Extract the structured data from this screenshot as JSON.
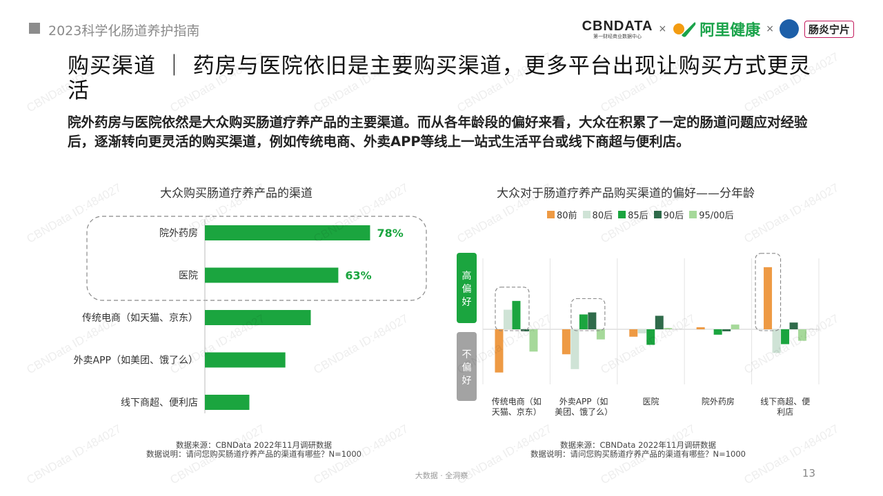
{
  "header": {
    "title": "2023科学化肠道养护指南"
  },
  "logos": {
    "cbn_main": "CBNDATA",
    "cbn_sub": "第一财经商业数据中心",
    "times": "×",
    "ali_name": "阿里健康",
    "brand": "肠炎宁片"
  },
  "main_title": "购买渠道 ｜ 药房与医院依旧是主要购买渠道，更多平台出现让购买方式更灵活",
  "subtitle": "院外药房与医院依然是大众购买肠道疗养产品的主要渠道。而从各年龄段的偏好来看，大众在积累了一定的肠道问题应对经验后，逐渐转向更灵活的购买渠道，例如传统电商、外卖APP等线上一站式生活平台或线下商超与便利店。",
  "left_chart": {
    "title": "大众购买肠道疗养产品的渠道",
    "source": "数据来源：CBNData 2022年11月调研数据",
    "note": "数据说明：请问您购买肠道疗养产品的渠道有哪些？N=1000"
  },
  "right_chart": {
    "title": "大众对于肠道疗养产品购买渠道的偏好——分年龄",
    "high_label": "高偏好",
    "low_label": "不偏好",
    "source": "数据来源：CBNData 2022年11月调研数据",
    "note": "数据说明：请问您购买肠道疗养产品的渠道有哪些？N=1000"
  },
  "footer": {
    "center": "大数据 · 全洞察",
    "page": "13"
  },
  "watermark": "CBNData ID:484027",
  "colors": {
    "green": "#1ba53f",
    "orange": "#ee9a44",
    "light_green_gray": "#cfe3d6",
    "dark_green": "#2f6b4a",
    "pale_green": "#a6d99a",
    "gray_box": "#a3a3a3"
  },
  "chart_data": [
    {
      "type": "bar",
      "orientation": "horizontal",
      "title": "大众购买肠道疗养产品的渠道",
      "categories": [
        "院外药房",
        "医院",
        "传统电商（如天猫、京东）",
        "外卖APP（如美团、饿了么）",
        "线下商超、便利店"
      ],
      "values": [
        78,
        63,
        50,
        38,
        21
      ],
      "value_labels": [
        "78%",
        "63%",
        "",
        "",
        ""
      ],
      "unit": "%",
      "highlighted": [
        "院外药房",
        "医院"
      ],
      "xlim": [
        0,
        100
      ],
      "color": "#1ba53f"
    },
    {
      "type": "bar",
      "title": "大众对于肠道疗养产品购买渠道的偏好——分年龄",
      "categories": [
        "传统电商（如天猫、京东）",
        "外卖APP（如美团、饿了么）",
        "医院",
        "院外药房",
        "线下商超、便利店"
      ],
      "series": [
        {
          "name": "80前",
          "color": "#ee9a44",
          "values": [
            -64,
            -37,
            -11,
            3,
            92
          ]
        },
        {
          "name": "80后",
          "color": "#cfe3d6",
          "values": [
            29,
            -59,
            -6,
            0,
            -35
          ]
        },
        {
          "name": "85后",
          "color": "#1ba53f",
          "values": [
            42,
            22,
            -23,
            -8,
            -22
          ]
        },
        {
          "name": "90后",
          "color": "#2f6b4a",
          "values": [
            -3,
            25,
            20,
            -3,
            10
          ]
        },
        {
          "name": "95/00后",
          "color": "#a6d99a",
          "values": [
            -33,
            -15,
            2,
            7,
            -17
          ]
        }
      ],
      "ylim": [
        -100,
        100
      ],
      "y_semantics": {
        "positive": "高偏好",
        "negative": "不偏好"
      },
      "highlighted": [
        "传统电商（如天猫、京东）",
        "外卖APP（如美团、饿了么）",
        "线下商超、便利店"
      ]
    }
  ]
}
